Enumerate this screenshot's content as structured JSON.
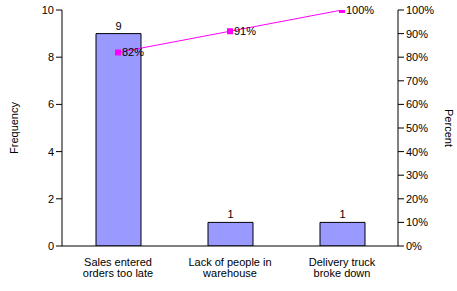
{
  "chart_data": {
    "type": "bar",
    "categories": [
      "Sales entered orders too late",
      "Lack of people in warehouse",
      "Delivery truck broke down"
    ],
    "y_label": "Frequency",
    "y2_label": "Percent",
    "ylim": [
      0,
      10
    ],
    "yticks": [
      0,
      2,
      4,
      6,
      8,
      10
    ],
    "y2lim": [
      0,
      100
    ],
    "y2ticks": [
      {
        "value": 0,
        "label": "0%"
      },
      {
        "value": 10,
        "label": "10%"
      },
      {
        "value": 20,
        "label": "20%"
      },
      {
        "value": 30,
        "label": "30%"
      },
      {
        "value": 40,
        "label": "40%"
      },
      {
        "value": 50,
        "label": "50%"
      },
      {
        "value": 60,
        "label": "60%"
      },
      {
        "value": 70,
        "label": "70%"
      },
      {
        "value": 80,
        "label": "80%"
      },
      {
        "value": 90,
        "label": "90%"
      },
      {
        "value": 100,
        "label": "100%"
      }
    ],
    "grid": false,
    "series": [
      {
        "type": "bar",
        "color": "#9999ff",
        "values": [
          9,
          1,
          1
        ],
        "data_labels": true
      },
      {
        "type": "line",
        "axis": "y2",
        "color": "#ff00ff",
        "marker": "square",
        "values": [
          82,
          91,
          100
        ],
        "value_labels": [
          "82%",
          "91%",
          "100%"
        ],
        "data_labels": true
      }
    ]
  }
}
